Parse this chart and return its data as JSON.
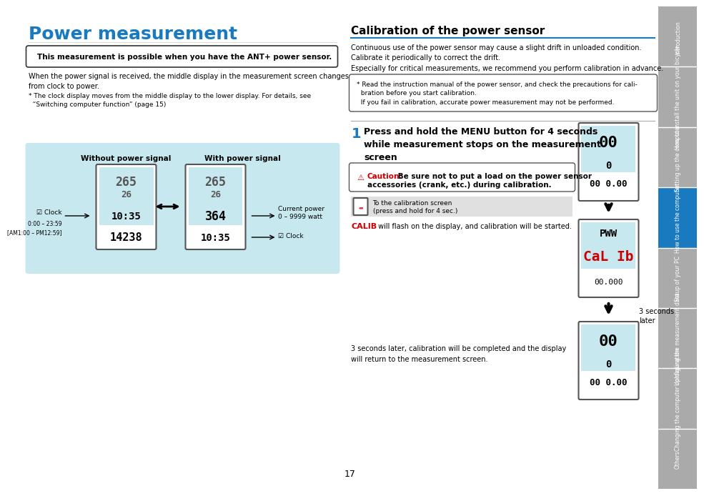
{
  "title": "Power measurement",
  "title_color": "#1a7abf",
  "title_fontsize": 18,
  "bg_color": "#ffffff",
  "sidebar_color": "#aaaaaa",
  "sidebar_blue_color": "#1a7abf",
  "sidebar_labels": [
    "Introduction",
    "How to install the unit on your bicycle",
    "Setting up the computer",
    "How to use the computer",
    "Setup of your PC",
    "Uploading the measurement data",
    "Changing the computer configuration",
    "Others"
  ],
  "sidebar_highlight_index": 3,
  "left_box_text": "This measurement is possible when you have the ANT+ power sensor.",
  "body_text1": "When the power signal is received, the middle display in the measurement screen changes\nfrom clock to power.",
  "body_text2": "* The clock display moves from the middle display to the lower display. For details, see\n  “Switching computer function” (page 15)",
  "diagram_bg": "#c8e8f0",
  "diag_label1": "Without power signal",
  "diag_label2": "With power signal",
  "diag_clock_label": "Clock",
  "diag_clock_range": "0:00 – 23:59\n[AM1:00 – PM12:59]",
  "diag_power_label": "Current power\n0 – 9999 watt",
  "diag_clock2_label": "Clock",
  "right_title": "Calibration of the power sensor",
  "right_body1": "Continuous use of the power sensor may cause a slight drift in unloaded condition.\nCalibrate it periodically to correct the drift.\nEspecially for critical measurements, we recommend you perform calibration in advance.",
  "right_note": "* Read the instruction manual of the power sensor, and check the precautions for cali-\n  bration before you start calibration.\n  If you fail in calibration, accurate power measurement may not be performed.",
  "step1_title": "Press and hold the MENU button for 4 seconds\nwhile measurement stops on the measurement\nscreen",
  "caution_text": "⚠ Caution:  Be sure not to put a load on the power sensor\naccessories (crank, etc.) during calibration.",
  "caution_label": "Caution:",
  "calib_text": "(press and hold for 4 sec.)",
  "calib_screen_text": "To the calibration screen",
  "calib_flash_text": "CALIB will flash on the display, and calibration will be started.",
  "calib_word": "CALIB",
  "three_sec_text": "3 seconds later, calibration will be completed and the display\nwill return to the measurement screen.",
  "three_sec_label": "3 seconds\nlater",
  "page_number": "17",
  "separator_color": "#1a7abf",
  "step_number_color": "#1a7abf"
}
